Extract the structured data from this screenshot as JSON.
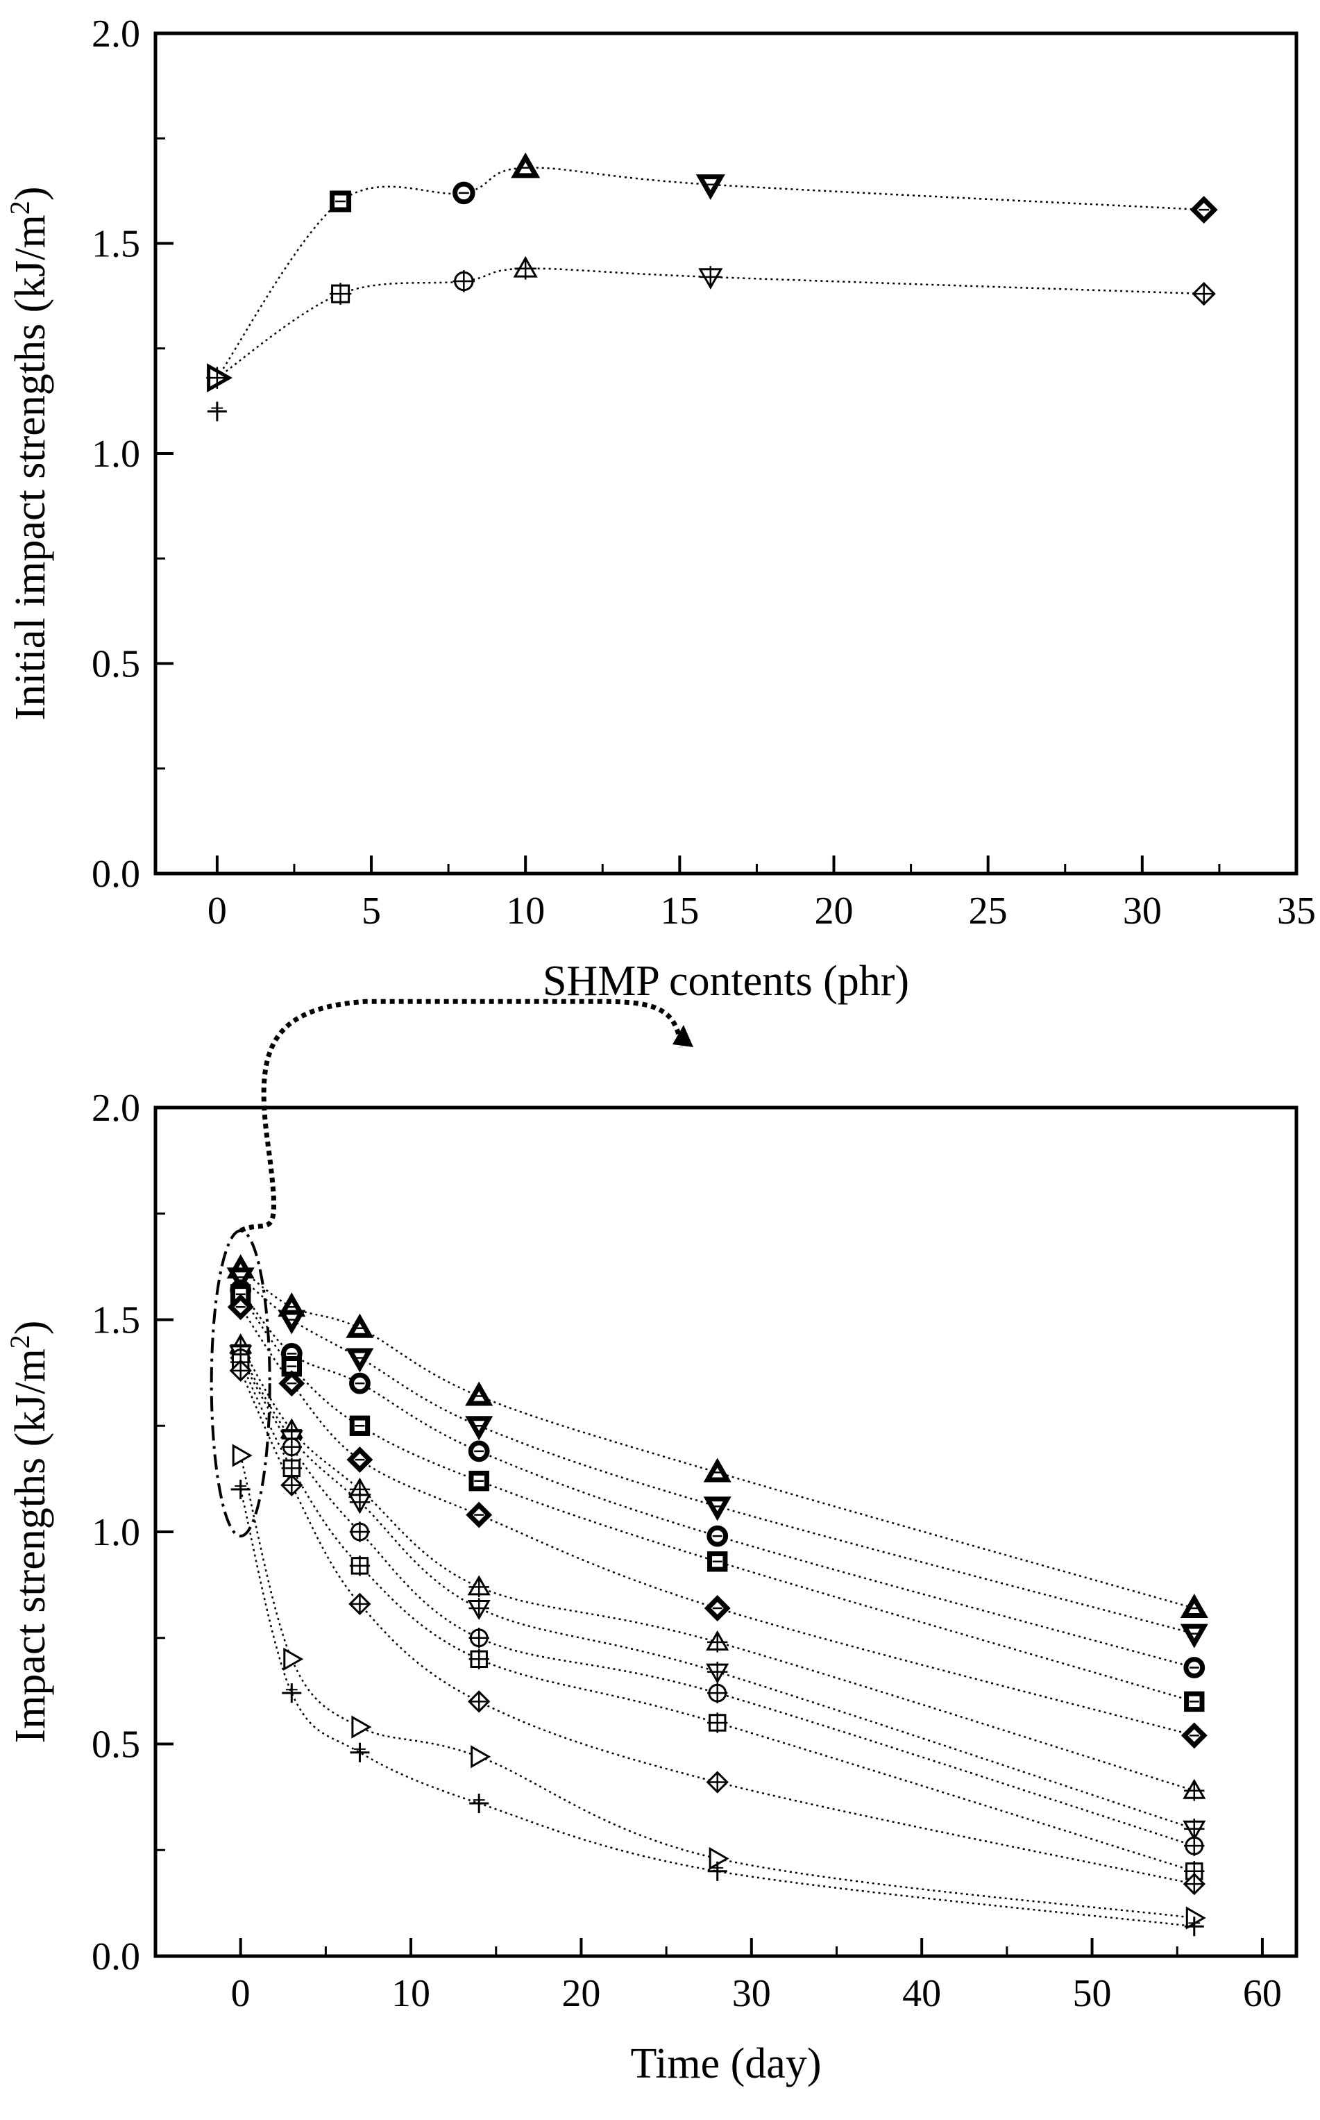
{
  "chart_data": [
    {
      "type": "scatter",
      "xlabel": "SHMP contents (phr)",
      "ylabel": "Initial impact strengths (kJ/m",
      "ylabel_sup": "2",
      "ylabel_tail": ")",
      "xlim": [
        -2,
        35
      ],
      "ylim": [
        0.0,
        2.0
      ],
      "xticks": [
        0,
        5,
        10,
        15,
        20,
        25,
        30,
        35
      ],
      "yticks": [
        0.0,
        0.5,
        1.0,
        1.5,
        2.0
      ],
      "xtick_labels": [
        "0",
        "5",
        "10",
        "15",
        "20",
        "25",
        "30",
        "35"
      ],
      "ytick_labels": [
        "0.0",
        "0.5",
        "1.0",
        "1.5",
        "2.0"
      ],
      "series": [
        {
          "style": "bold",
          "points": [
            [
              0,
              1.18
            ],
            [
              4,
              1.6
            ],
            [
              8,
              1.62
            ],
            [
              10,
              1.68
            ],
            [
              16,
              1.64
            ],
            [
              32,
              1.58
            ]
          ]
        },
        {
          "style": "crossed",
          "points": [
            [
              0,
              1.18
            ],
            [
              4,
              1.38
            ],
            [
              8,
              1.41
            ],
            [
              10,
              1.44
            ],
            [
              16,
              1.42
            ],
            [
              32,
              1.38
            ]
          ]
        },
        {
          "style": "control",
          "points": [
            [
              0,
              1.1
            ]
          ]
        }
      ]
    },
    {
      "type": "line",
      "xlabel": "Time (day)",
      "ylabel": "Impact strengths (kJ/m",
      "ylabel_sup": "2",
      "ylabel_tail": ")",
      "xlim": [
        -5,
        62
      ],
      "ylim": [
        0.0,
        2.0
      ],
      "xticks": [
        0,
        10,
        20,
        30,
        40,
        50,
        60
      ],
      "yticks": [
        0.0,
        0.5,
        1.0,
        1.5,
        2.0
      ],
      "xtick_labels": [
        "0",
        "10",
        "20",
        "30",
        "40",
        "50",
        "60"
      ],
      "ytick_labels": [
        "0.0",
        "0.5",
        "1.0",
        "1.5",
        "2.0"
      ],
      "x": [
        0,
        3,
        7,
        14,
        28,
        56
      ],
      "series": [
        {
          "marker": "triangle-up",
          "style": "bold",
          "values": [
            1.62,
            1.53,
            1.48,
            1.32,
            1.14,
            0.82
          ]
        },
        {
          "marker": "triangle-down",
          "style": "bold",
          "values": [
            1.6,
            1.5,
            1.41,
            1.25,
            1.06,
            0.76
          ]
        },
        {
          "marker": "circle",
          "style": "bold",
          "values": [
            1.57,
            1.42,
            1.35,
            1.19,
            0.99,
            0.68
          ]
        },
        {
          "marker": "square",
          "style": "bold",
          "values": [
            1.56,
            1.39,
            1.25,
            1.12,
            0.93,
            0.6
          ]
        },
        {
          "marker": "diamond",
          "style": "bold",
          "values": [
            1.53,
            1.35,
            1.17,
            1.04,
            0.82,
            0.52
          ]
        },
        {
          "marker": "triangle-up",
          "style": "crossed",
          "values": [
            1.44,
            1.24,
            1.1,
            0.87,
            0.74,
            0.39
          ]
        },
        {
          "marker": "triangle-down",
          "style": "crossed",
          "values": [
            1.42,
            1.22,
            1.07,
            0.82,
            0.67,
            0.3
          ]
        },
        {
          "marker": "circle",
          "style": "crossed",
          "values": [
            1.41,
            1.2,
            1.0,
            0.75,
            0.62,
            0.26
          ]
        },
        {
          "marker": "square",
          "style": "crossed",
          "values": [
            1.4,
            1.15,
            0.92,
            0.7,
            0.55,
            0.2
          ]
        },
        {
          "marker": "diamond",
          "style": "crossed",
          "values": [
            1.38,
            1.11,
            0.83,
            0.6,
            0.41,
            0.17
          ]
        },
        {
          "marker": "triangle-right",
          "style": "plain",
          "values": [
            1.18,
            0.7,
            0.54,
            0.47,
            0.23,
            0.09
          ]
        },
        {
          "marker": "plus",
          "style": "plain",
          "values": [
            1.1,
            0.62,
            0.48,
            0.36,
            0.2,
            0.07
          ]
        }
      ]
    }
  ]
}
